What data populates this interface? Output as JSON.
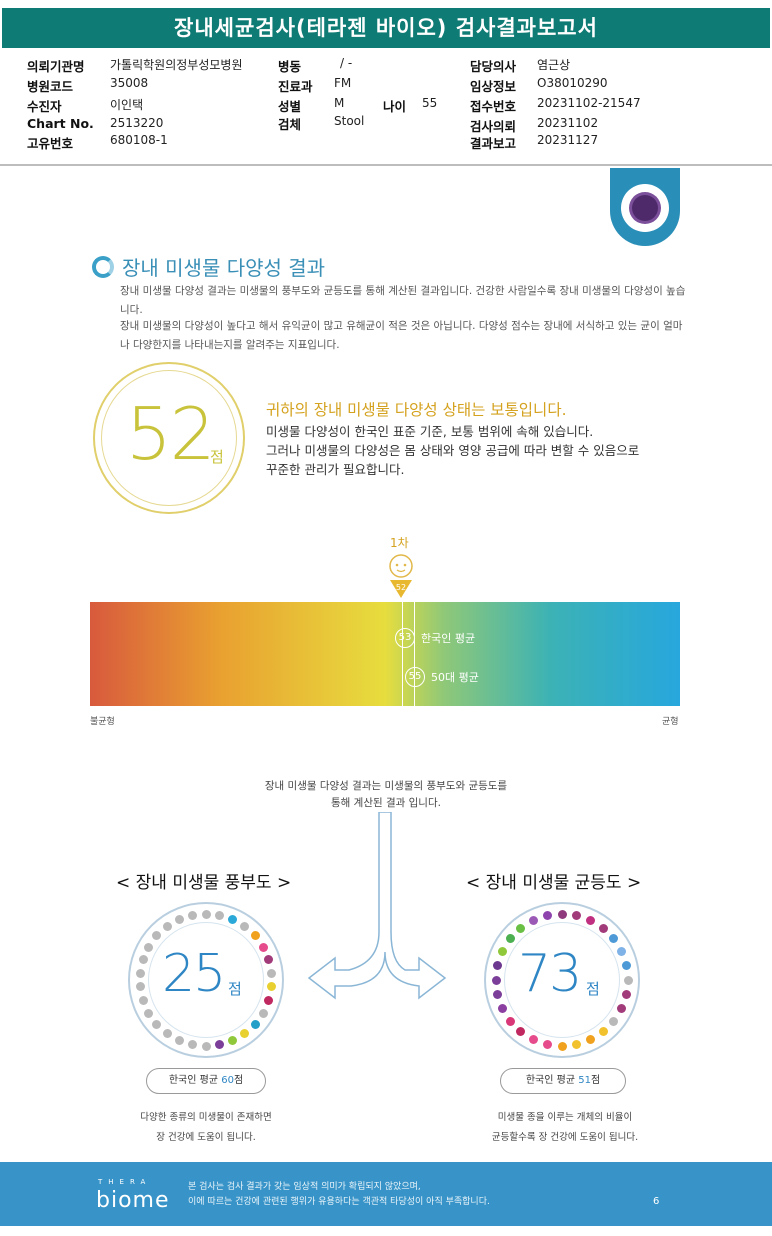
{
  "header": {
    "title": "장내세균검사(테라젠 바이오) 검사결과보고서"
  },
  "info": [
    {
      "label": "의뢰기관명",
      "value": "가톨릭학원의정부성모병원"
    },
    {
      "label": "병원코드",
      "value": "35008"
    },
    {
      "label": "수진자",
      "value": "이인택"
    },
    {
      "label": "Chart No.",
      "value": "2513220"
    },
    {
      "label": "고유번호",
      "value": "680108-1"
    },
    {
      "label": "병동",
      "value": "/ -"
    },
    {
      "label": "진료과",
      "value": "FM"
    },
    {
      "label": "성별",
      "value": "M"
    },
    {
      "label": "검체",
      "value": "Stool"
    },
    {
      "label": "나이",
      "value": "55"
    },
    {
      "label": "담당의사",
      "value": "염근상"
    },
    {
      "label": "임상정보",
      "value": "O38010290"
    },
    {
      "label": "접수번호",
      "value": "20231102-21547"
    },
    {
      "label": "검사의뢰",
      "value": "20231102"
    },
    {
      "label": "결과보고",
      "value": "20231127"
    }
  ],
  "section": {
    "title": "장내 미생물 다양성 결과",
    "desc1": "장내 미생물 다양성 결과는 미생물의 풍부도와 균등도를 통해 계산된 결과입니다. 건강한 사람일수록 장내 미생물의 다양성이 높습니다.",
    "desc2": "장내 미생물의 다양성이 높다고 해서 유익균이 많고 유해균이 적은 것은 아닙니다. 다양성 점수는 장내에 서식하고 있는 균이 얼마나 다양한지를 나타내는지를 알려주는 지표입니다."
  },
  "score": {
    "value": "52",
    "unit": "점",
    "headline": "귀하의 장내 미생물 다양성 상태는 보통입니다.",
    "line1": "미생물 다양성이 한국인 표준 기준, 보통 범위에 속해 있습니다.",
    "line2": "그러나 미생물의 다양성은 몸 상태와 영양 공급에 따라 변할 수 있음으로",
    "line3": "꾸준한 관리가 필요합니다."
  },
  "scale": {
    "marker_label": "1차",
    "marker_value": "52",
    "korean_avg_value": "53",
    "korean_avg_label": "한국인 평균",
    "age_avg_value": "55",
    "age_avg_label": "50대 평균",
    "left_label": "불균형",
    "right_label": "균형",
    "min": 0,
    "max": 100
  },
  "note": {
    "line1": "장내 미생물 다양성 결과는 미생물의 풍부도와 균등도를",
    "line2": "통해 계산된 결과 입니다."
  },
  "richness": {
    "title": "< 장내 미생물 풍부도 >",
    "value": "25",
    "unit": "점",
    "avg_prefix": "한국인 평균 ",
    "avg_value": "60",
    "avg_suffix": "점",
    "cap1": "다양한 종류의 미생물이 존재하면",
    "cap2": "장 건강에 도움이 됩니다."
  },
  "evenness": {
    "title": "< 장내 미생물 균등도 >",
    "value": "73",
    "unit": "점",
    "avg_prefix": "한국인 평균 ",
    "avg_value": "51",
    "avg_suffix": "점",
    "cap1": "미생물 종을 이루는 개체의 비율이",
    "cap2": "균등할수록 장 건강에 도움이 됩니다."
  },
  "footer": {
    "logo_small": "THERA",
    "logo": "biome",
    "line1": "본 검사는 검사 결과가 갖는 임상적 의미가 확립되지 않았으며,",
    "line2": "이에 따르는 건강에 관련된 행위가 유용하다는 객관적 타당성이 아직 부족합니다.",
    "page": "6"
  },
  "colors": {
    "brand": "#0e7b74",
    "accent": "#3894c8",
    "score": "#c8c33a",
    "status": "#d4a21e"
  }
}
